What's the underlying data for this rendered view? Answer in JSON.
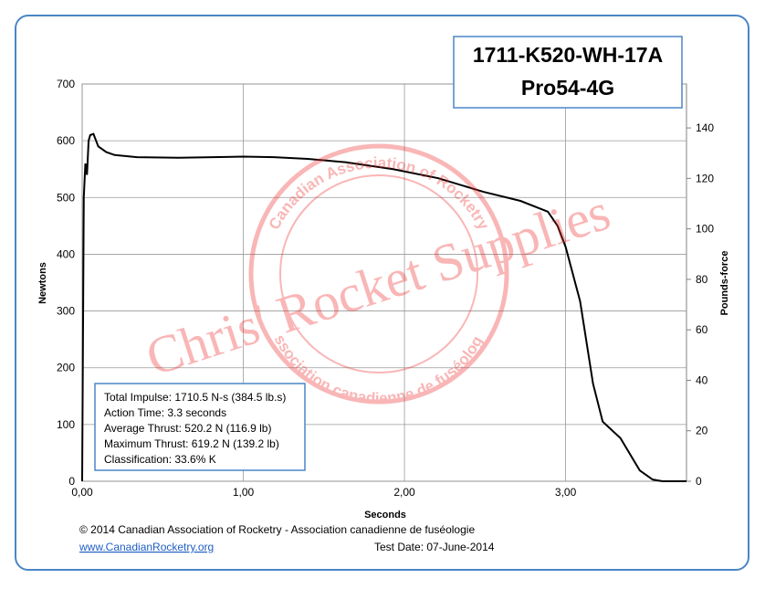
{
  "chart_data": {
    "type": "line",
    "title_lines": [
      "1711-K520-WH-17A",
      "Pro54-4G"
    ],
    "x_label": "Seconds",
    "y_label": "Newtons",
    "y2_label": "Pounds-force",
    "color": "#000000",
    "grid": true,
    "x": [
      0,
      0.01,
      0.02,
      0.03,
      0.04,
      0.05,
      0.07,
      0.1,
      0.15,
      0.2,
      0.34,
      0.6,
      1.0,
      1.19,
      1.4,
      1.64,
      1.93,
      2.21,
      2.49,
      2.72,
      2.89,
      2.95,
      3.0,
      3.09,
      3.17,
      3.23,
      3.34,
      3.46,
      3.54,
      3.6,
      3.75
    ],
    "values": [
      0,
      500,
      560,
      540,
      600,
      610,
      612,
      590,
      580,
      575,
      571,
      570,
      572,
      571,
      568,
      562,
      550,
      534,
      510,
      494,
      475,
      450,
      413,
      317,
      172,
      105,
      76,
      19,
      3,
      0,
      0
    ],
    "xlim": [
      0,
      3.75
    ],
    "xticks": [
      {
        "value": 0,
        "label": "0,00"
      },
      {
        "value": 1,
        "label": "1,00"
      },
      {
        "value": 2,
        "label": "2,00"
      },
      {
        "value": 3,
        "label": "3,00"
      }
    ],
    "ylim": [
      0,
      700
    ],
    "yticks": [
      0,
      100,
      200,
      300,
      400,
      500,
      600,
      700
    ],
    "y2lim": [
      0,
      157.4
    ],
    "y2ticks": [
      0,
      20,
      40,
      60,
      80,
      100,
      120,
      140
    ],
    "annotations": {
      "stats": [
        "Total Impulse: 1710.5 N-s (384.5 lb.s)",
        "Action Time: 3.3 seconds",
        "Average Thrust: 520.2 N (116.9 lb)",
        "Maximum Thrust: 619.2 N (139.2 lb)",
        "Classification: 33.6% K"
      ],
      "copyright": "© 2014 Canadian Association of Rocketry - Association canadienne de fuséologie",
      "url": "www.CanadianRocketry.org",
      "test_date": "Test  Date: 07-June-2014",
      "watermark": "Chris' Rocket Supplies",
      "seal_top": "Canadian Association of Rocketry",
      "seal_bottom": "Association canadienne de fuséologie"
    }
  }
}
